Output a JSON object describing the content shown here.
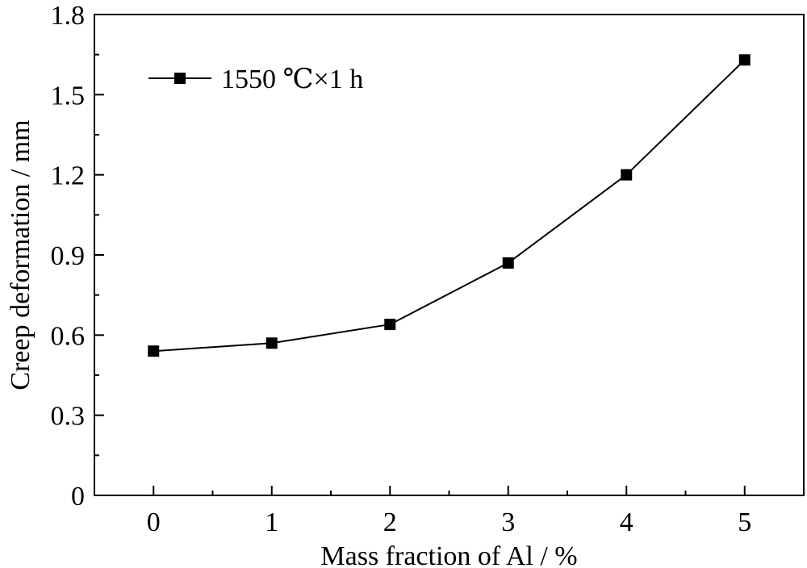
{
  "chart_data": {
    "type": "line",
    "title": "",
    "xlabel": "Mass fraction of Al / %",
    "ylabel": "Creep deformation / mm",
    "xlim": [
      -0.5,
      5.5
    ],
    "ylim": [
      0,
      1.8
    ],
    "xticks": [
      0,
      1,
      2,
      3,
      4,
      5
    ],
    "xtick_labels": [
      "0",
      "1",
      "2",
      "3",
      "4",
      "5"
    ],
    "yticks": [
      0,
      0.3,
      0.6,
      0.9,
      1.2,
      1.5,
      1.8
    ],
    "ytick_labels": [
      "0",
      "0.3",
      "0.6",
      "0.9",
      "1.2",
      "1.5",
      "1.8"
    ],
    "grid": false,
    "legend_position": "top-left",
    "series": [
      {
        "name": "1550 ℃×1 h",
        "marker": "square",
        "color": "#000000",
        "x": [
          0,
          1,
          2,
          3,
          4,
          5
        ],
        "y": [
          0.54,
          0.57,
          0.64,
          0.87,
          1.2,
          1.63
        ]
      }
    ]
  }
}
